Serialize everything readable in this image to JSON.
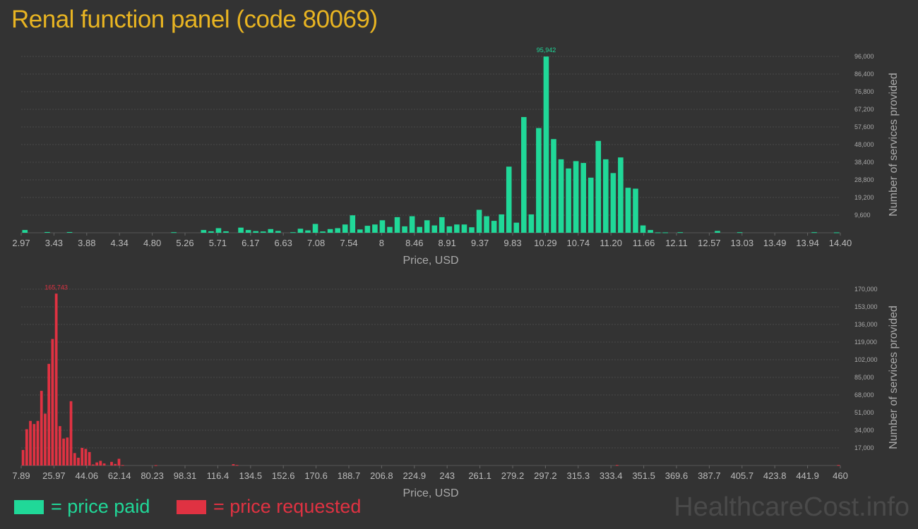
{
  "title": "Renal function panel (code 80069)",
  "legend": {
    "paid_label": "= price paid",
    "requested_label": "= price requested"
  },
  "watermark": "HealthcareCost.info",
  "colors": {
    "paid": "#20d898",
    "requested": "#e03242",
    "background": "#333333",
    "title": "#e8b422"
  },
  "chart_data": [
    {
      "type": "bar",
      "series": [
        {
          "name": "price paid"
        }
      ],
      "xlabel": "Price, USD",
      "ylabel": "Number of services provided",
      "x_tick_labels": [
        "2.97",
        "3.43",
        "3.88",
        "4.34",
        "4.80",
        "5.26",
        "5.71",
        "6.17",
        "6.63",
        "7.08",
        "7.54",
        "8",
        "8.46",
        "8.91",
        "9.37",
        "9.83",
        "10.29",
        "10.74",
        "11.20",
        "11.66",
        "12.11",
        "12.57",
        "13.03",
        "13.49",
        "13.94",
        "14.40"
      ],
      "y_tick_labels": [
        "9,600",
        "19,200",
        "28,800",
        "38,400",
        "48,000",
        "57,600",
        "67,200",
        "76,800",
        "86,400",
        "96,000"
      ],
      "ylim": [
        0,
        96000
      ],
      "peak_label": "95,942",
      "grid": true,
      "values": [
        1500,
        0,
        0,
        400,
        0,
        0,
        400,
        0,
        0,
        0,
        0,
        0,
        0,
        0,
        0,
        0,
        0,
        0,
        0,
        0,
        300,
        0,
        0,
        0,
        1500,
        800,
        2500,
        800,
        0,
        2800,
        1500,
        900,
        700,
        2000,
        1000,
        0,
        300,
        2200,
        1300,
        4800,
        700,
        2000,
        2500,
        4500,
        9500,
        1800,
        3800,
        4500,
        6800,
        3200,
        8500,
        3500,
        9000,
        3200,
        6800,
        4000,
        8500,
        3500,
        4500,
        4500,
        3000,
        12500,
        9000,
        6500,
        10000,
        36000,
        5500,
        63000,
        10000,
        57000,
        95942,
        51000,
        40000,
        35000,
        39000,
        38000,
        30000,
        50000,
        40000,
        32500,
        41000,
        24500,
        24000,
        4000,
        1500,
        200,
        200,
        0,
        300,
        0,
        0,
        0,
        0,
        1000,
        0,
        0,
        300,
        0,
        0,
        0,
        0,
        0,
        0,
        0,
        0,
        0,
        300,
        0,
        0,
        200
      ]
    },
    {
      "type": "bar",
      "series": [
        {
          "name": "price requested"
        }
      ],
      "xlabel": "Price, USD",
      "ylabel": "Number of services provided",
      "x_tick_labels": [
        "7.89",
        "25.97",
        "44.06",
        "62.14",
        "80.23",
        "98.31",
        "116.4",
        "134.5",
        "152.6",
        "170.6",
        "188.7",
        "206.8",
        "224.9",
        "243",
        "261.1",
        "279.2",
        "297.2",
        "315.3",
        "333.4",
        "351.5",
        "369.6",
        "387.7",
        "405.7",
        "423.8",
        "441.9",
        "460"
      ],
      "y_tick_labels": [
        "17,000",
        "34,000",
        "51,000",
        "68,000",
        "85,000",
        "102,000",
        "119,000",
        "136,000",
        "153,000",
        "170,000"
      ],
      "ylim": [
        0,
        170000
      ],
      "peak_label": "165,743",
      "grid": true,
      "values": [
        15000,
        35000,
        43000,
        40000,
        43000,
        72000,
        50000,
        98000,
        122000,
        165743,
        38000,
        26000,
        27000,
        62000,
        12000,
        7500,
        17000,
        16000,
        13000,
        1000,
        3000,
        4500,
        2000,
        0,
        3500,
        1500,
        6500,
        500,
        0,
        0,
        0,
        0,
        0,
        0,
        0,
        0,
        300,
        0,
        0,
        0,
        0,
        0,
        0,
        0,
        0,
        0,
        0,
        0,
        0,
        0,
        0,
        0,
        0,
        0,
        0,
        0,
        0,
        1300,
        500,
        0,
        0,
        0,
        0,
        0,
        0,
        0,
        0,
        0,
        0,
        0,
        0,
        0,
        0,
        0,
        0,
        0,
        0,
        0,
        0,
        0,
        0,
        0,
        0,
        0,
        0,
        0,
        0,
        0,
        0,
        0,
        0,
        0,
        0,
        0,
        0,
        0,
        0,
        0,
        0,
        0,
        0,
        0,
        0,
        0,
        0,
        0,
        0,
        0,
        0,
        0,
        0,
        0,
        0,
        0,
        0,
        0,
        0,
        0,
        0,
        0,
        0,
        0,
        0,
        0,
        0,
        0,
        0,
        0,
        0,
        0,
        0,
        0,
        0,
        0,
        0,
        0,
        0,
        0,
        0,
        0,
        0,
        0,
        0,
        0,
        0,
        0,
        0,
        0,
        0,
        0,
        0,
        0,
        0,
        0,
        0,
        0,
        0,
        0,
        0,
        0,
        0,
        500,
        0,
        0,
        0,
        0,
        0,
        0,
        0,
        0,
        0,
        0,
        0,
        0,
        0,
        0,
        0,
        0,
        0,
        0,
        0,
        0,
        0,
        0,
        0,
        0,
        0,
        0,
        0,
        0,
        0,
        0,
        0,
        0,
        0,
        0,
        0,
        0,
        0,
        0,
        0,
        0,
        0,
        0,
        0,
        0,
        0,
        0,
        0,
        0,
        0,
        0,
        0,
        0,
        0,
        0,
        0,
        0,
        0,
        0,
        0,
        500
      ]
    }
  ]
}
